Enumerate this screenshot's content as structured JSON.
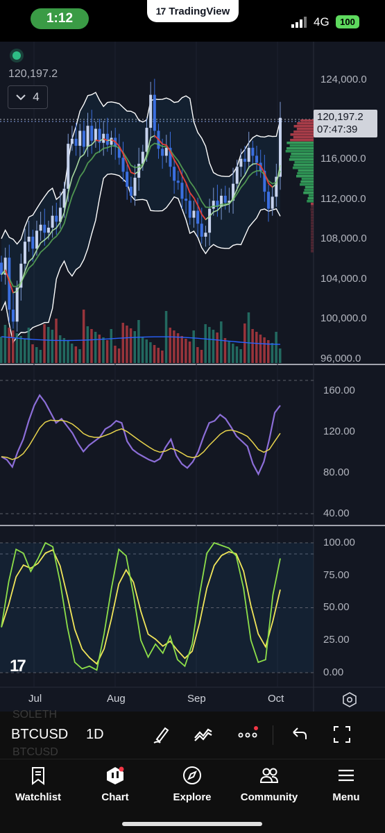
{
  "status_bar": {
    "time": "1:12",
    "app_name": "TradingView",
    "network": "4G",
    "battery": "100",
    "colors": {
      "time_pill": "#3a9b45",
      "battery": "#5ed95e"
    }
  },
  "chart": {
    "last_price": "120,197.2",
    "countdown": "07:47:39",
    "legend_value": "120,197.2",
    "indicator_count": "4",
    "price_axis": [
      "124,000.0",
      "120,000.0",
      "116,000.0",
      "112,000.0",
      "108,000.0",
      "104,000.0",
      "100,000.0",
      "96,000.0"
    ],
    "rsi_axis": [
      "160.00",
      "120.00",
      "80.00",
      "40.00"
    ],
    "stoch_axis": [
      "100.00",
      "75.00",
      "50.00",
      "25.00",
      "0.00"
    ],
    "time_axis": [
      "Jul",
      "Aug",
      "Sep",
      "Oct"
    ],
    "colors": {
      "background": "#131722",
      "up": "#7e9bd6",
      "down": "#3b6fe0",
      "upper_band": "#ffffff",
      "ma_green": "#5fb35a",
      "ma_red": "#e53935",
      "volume_up": "#26786b",
      "volume_down": "#b0393f",
      "rsi": "#8c6ed8",
      "rsi_ma": "#e8d44d",
      "stoch_k": "#8ee04a",
      "stoch_d": "#f2e65a"
    }
  },
  "toolbar": {
    "symbol": "BTCUSD",
    "interval": "1D",
    "ghost_top": "SOLETH",
    "ghost_bottom": "BTCUSD"
  },
  "nav": {
    "items": [
      {
        "label": "Watchlist"
      },
      {
        "label": "Chart"
      },
      {
        "label": "Explore"
      },
      {
        "label": "Community"
      },
      {
        "label": "Menu"
      }
    ]
  },
  "chart_data": [
    {
      "type": "candlestick",
      "title": "BTCUSD 1D",
      "x_ticks": [
        "Jul",
        "Aug",
        "Sep",
        "Oct"
      ],
      "ylim": [
        96000,
        126000
      ],
      "close": [
        104500,
        106200,
        101000,
        99800,
        103200,
        105600,
        107800,
        108300,
        107100,
        108900,
        109500,
        108700,
        109200,
        110400,
        109800,
        111200,
        113100,
        117600,
        118100,
        117400,
        118900,
        117300,
        119400,
        117900,
        119100,
        117700,
        118600,
        117500,
        118200,
        117300,
        116200,
        114800,
        113300,
        112400,
        114200,
        115600,
        116800,
        119200,
        122500,
        118900,
        117100,
        116400,
        117200,
        115300,
        113900,
        113700,
        112100,
        111900,
        110200,
        110900,
        109600,
        108300,
        108700,
        111100,
        111900,
        111300,
        112400,
        111700,
        111900,
        113600,
        115300,
        116100,
        115800,
        117200,
        116400,
        115700,
        114900,
        112800,
        111100,
        112300,
        114300,
        120197
      ],
      "volume_scale": "relative"
    },
    {
      "type": "line",
      "title": "Oscillator",
      "ylim": [
        40,
        170
      ],
      "series": [
        {
          "values": [
            95,
            92,
            85,
            100,
            112,
            130,
            145,
            155,
            148,
            138,
            128,
            132,
            125,
            118,
            108,
            100,
            106,
            110,
            114,
            122,
            125,
            130,
            128,
            110,
            102,
            98,
            95,
            92,
            90,
            93,
            104,
            112,
            96,
            88,
            84,
            90,
            100,
            115,
            128,
            130,
            136,
            132,
            124,
            115,
            110,
            105,
            88,
            78,
            90,
            112,
            138,
            145
          ]
        }
      ]
    },
    {
      "type": "line",
      "title": "Stochastic",
      "ylim": [
        0,
        100
      ],
      "series": [
        {
          "values": [
            35,
            70,
            95,
            92,
            78,
            88,
            100,
            97,
            70,
            35,
            8,
            3,
            5,
            2,
            30,
            65,
            95,
            90,
            60,
            25,
            12,
            22,
            15,
            28,
            10,
            5,
            22,
            60,
            92,
            100,
            98,
            96,
            90,
            65,
            25,
            8,
            10,
            60,
            88
          ]
        }
      ]
    }
  ]
}
